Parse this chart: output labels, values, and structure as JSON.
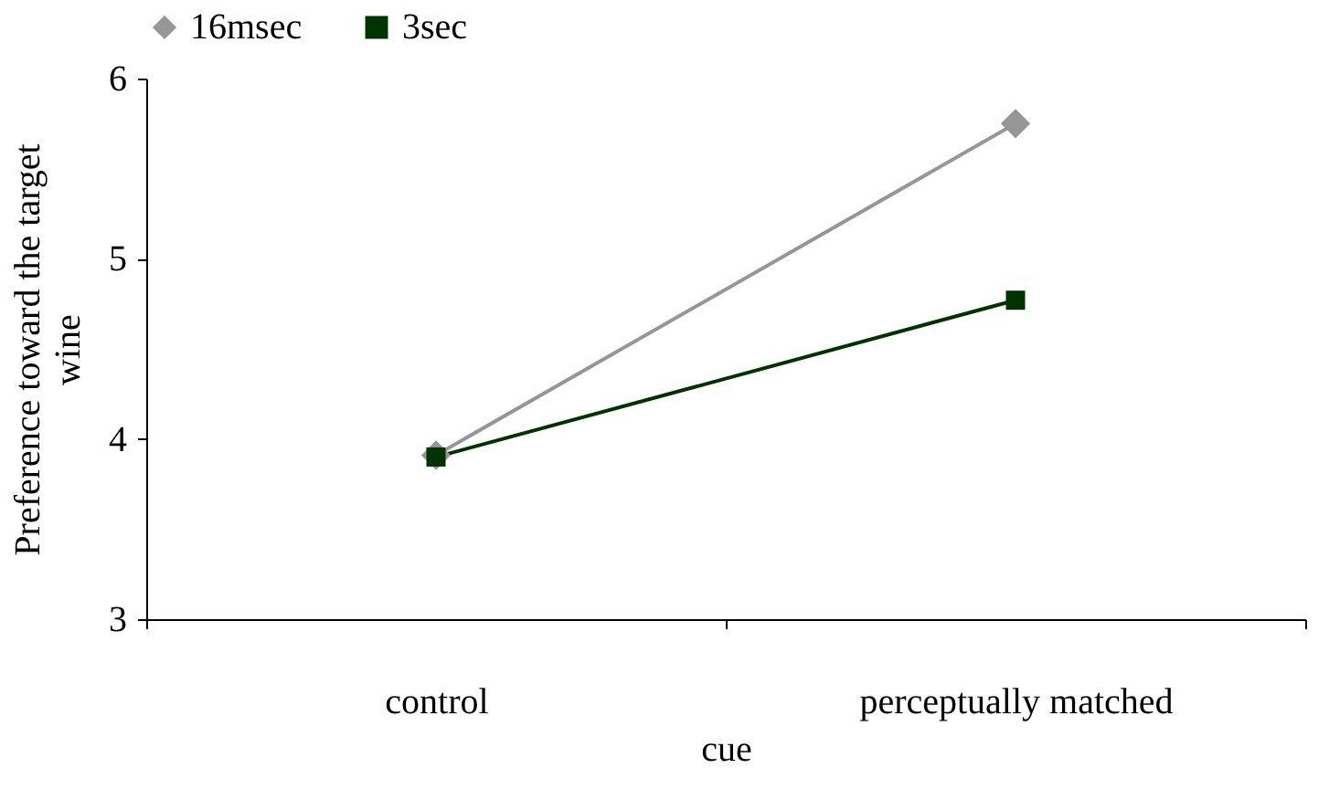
{
  "chart_data": {
    "type": "line",
    "xlabel": "cue",
    "ylabel": "Preference toward the target wine",
    "categories": [
      "control",
      "perceptually matched"
    ],
    "series": [
      {
        "name": "16msec",
        "color": "#969696",
        "marker": "diamond",
        "values": [
          3.91,
          5.75
        ]
      },
      {
        "name": "3sec",
        "color": "#003300",
        "marker": "square",
        "values": [
          3.9,
          4.77
        ]
      }
    ],
    "ylim": [
      3,
      6
    ],
    "yticks": [
      3,
      4,
      5,
      6
    ],
    "grid": false,
    "legend": "top",
    "line_style": "solid"
  }
}
